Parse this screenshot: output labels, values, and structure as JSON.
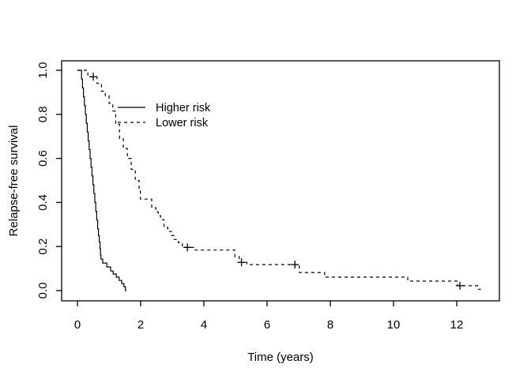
{
  "figure": {
    "background": "#ffffff",
    "foreground": "#000000"
  },
  "chart_data": {
    "type": "line",
    "subtype": "kaplan-meier-step",
    "title": "",
    "xlabel": "Time (years)",
    "ylabel": "Relapse-free survival",
    "xlim": [
      -0.5,
      13.35
    ],
    "ylim": [
      -0.047,
      1.043
    ],
    "x_ticks": [
      0,
      2,
      4,
      6,
      8,
      10,
      12
    ],
    "x_tick_labels": [
      "0",
      "2",
      "4",
      "6",
      "8",
      "10",
      "12"
    ],
    "y_ticks": [
      0.0,
      0.2,
      0.4,
      0.6,
      0.8,
      1.0
    ],
    "y_tick_labels": [
      "0.0",
      "0.2",
      "0.4",
      "0.6",
      "0.8",
      "1.0"
    ],
    "grid": false,
    "legend_position": "upper-left-inside",
    "series": [
      {
        "name": "Higher risk",
        "line_style": "solid",
        "color": "#000000",
        "end_t": 1.55,
        "censor_marks": [],
        "points": [
          [
            0,
            1.0
          ],
          [
            0.13,
            0.96
          ],
          [
            0.16,
            0.92
          ],
          [
            0.19,
            0.88
          ],
          [
            0.22,
            0.84
          ],
          [
            0.25,
            0.8
          ],
          [
            0.28,
            0.76
          ],
          [
            0.31,
            0.72
          ],
          [
            0.34,
            0.68
          ],
          [
            0.37,
            0.64
          ],
          [
            0.4,
            0.6
          ],
          [
            0.43,
            0.56
          ],
          [
            0.46,
            0.52
          ],
          [
            0.49,
            0.48
          ],
          [
            0.52,
            0.44
          ],
          [
            0.55,
            0.4
          ],
          [
            0.58,
            0.36
          ],
          [
            0.61,
            0.32
          ],
          [
            0.64,
            0.28
          ],
          [
            0.665,
            0.25
          ],
          [
            0.69,
            0.22
          ],
          [
            0.715,
            0.19
          ],
          [
            0.73,
            0.16
          ],
          [
            0.745,
            0.143
          ],
          [
            0.8,
            0.125
          ],
          [
            0.93,
            0.107
          ],
          [
            1.05,
            0.089
          ],
          [
            1.13,
            0.075
          ],
          [
            1.23,
            0.061
          ],
          [
            1.32,
            0.046
          ],
          [
            1.4,
            0.032
          ],
          [
            1.47,
            0.018
          ],
          [
            1.52,
            0.0
          ]
        ]
      },
      {
        "name": "Lower risk",
        "line_style": "dashed",
        "color": "#000000",
        "end_t": 12.78,
        "censor_marks": [
          [
            0.5,
            0.971
          ],
          [
            3.48,
            0.196
          ],
          [
            5.19,
            0.128
          ],
          [
            6.88,
            0.118
          ],
          [
            12.1,
            0.022
          ]
        ],
        "points": [
          [
            0,
            1.0
          ],
          [
            0.33,
            0.971
          ],
          [
            0.62,
            0.94
          ],
          [
            0.76,
            0.905
          ],
          [
            0.88,
            0.885
          ],
          [
            1.0,
            0.85
          ],
          [
            1.12,
            0.815
          ],
          [
            1.21,
            0.755
          ],
          [
            1.33,
            0.69
          ],
          [
            1.45,
            0.645
          ],
          [
            1.58,
            0.6
          ],
          [
            1.7,
            0.55
          ],
          [
            1.83,
            0.5
          ],
          [
            1.95,
            0.455
          ],
          [
            1.99,
            0.415
          ],
          [
            2.35,
            0.376
          ],
          [
            2.48,
            0.357
          ],
          [
            2.56,
            0.34
          ],
          [
            2.63,
            0.322
          ],
          [
            2.74,
            0.287
          ],
          [
            2.86,
            0.268
          ],
          [
            2.98,
            0.25
          ],
          [
            3.06,
            0.232
          ],
          [
            3.19,
            0.218
          ],
          [
            3.32,
            0.196
          ],
          [
            3.72,
            0.184
          ],
          [
            4.98,
            0.154
          ],
          [
            5.12,
            0.128
          ],
          [
            5.36,
            0.118
          ],
          [
            7.02,
            0.082
          ],
          [
            7.82,
            0.061
          ],
          [
            10.45,
            0.043
          ],
          [
            12.03,
            0.022
          ],
          [
            12.66,
            0.006
          ]
        ]
      }
    ],
    "legend": {
      "items": [
        {
          "label": "Higher risk",
          "line_style": "solid"
        },
        {
          "label": "Lower risk",
          "line_style": "dashed"
        }
      ]
    }
  }
}
